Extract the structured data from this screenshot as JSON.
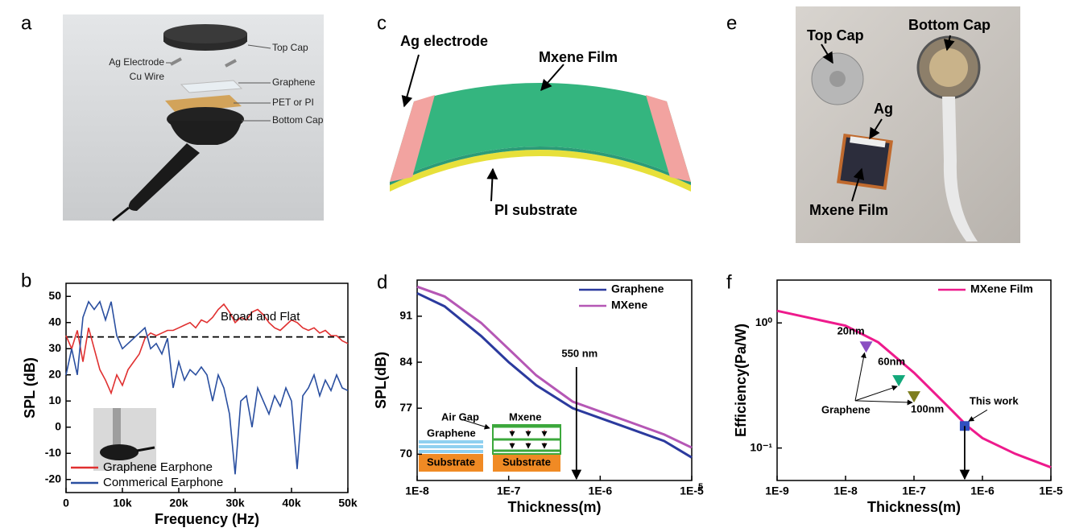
{
  "panel_labels": [
    "a",
    "b",
    "c",
    "d",
    "e",
    "f"
  ],
  "diagram_a": {
    "labels": [
      "Top Cap",
      "Ag Electrode",
      "Cu Wire",
      "Graphene",
      "PET or PI",
      "Bottom Cap"
    ]
  },
  "diagram_c": {
    "labels": [
      "Ag electrode",
      "Mxene Film",
      "PI substrate"
    ]
  },
  "photo_e": {
    "labels": [
      "Top Cap",
      "Bottom Cap",
      "Ag",
      "Mxene Film"
    ]
  },
  "chart_data": [
    {
      "type": "line",
      "y_label": "SPL (dB)",
      "x_label": "Frequency (Hz)",
      "x": [
        0,
        1000,
        2000,
        3000,
        4000,
        5000,
        6000,
        7000,
        8000,
        9000,
        10000,
        11000,
        12000,
        13000,
        14000,
        15000,
        16000,
        17000,
        18000,
        19000,
        20000,
        21000,
        22000,
        23000,
        24000,
        25000,
        26000,
        27000,
        28000,
        29000,
        30000,
        31000,
        32000,
        33000,
        34000,
        35000,
        36000,
        37000,
        38000,
        39000,
        40000,
        41000,
        42000,
        43000,
        44000,
        45000,
        46000,
        47000,
        48000,
        49000,
        50000
      ],
      "series": [
        {
          "name": "Graphene Earphone",
          "color": "#e03030",
          "values": [
            35,
            30,
            37,
            25,
            38,
            30,
            22,
            18,
            13,
            20,
            16,
            22,
            25,
            28,
            34,
            36,
            35,
            36,
            37,
            37,
            38,
            39,
            40,
            38,
            41,
            40,
            42,
            45,
            47,
            44,
            40,
            42,
            41,
            44,
            45,
            43,
            40,
            38,
            37,
            39,
            41,
            40,
            38,
            37,
            38,
            36,
            37,
            35,
            35,
            33,
            32
          ]
        },
        {
          "name": "Commerical Earphone",
          "color": "#2a4fa0",
          "values": [
            20,
            30,
            20,
            42,
            48,
            45,
            48,
            41,
            48,
            35,
            30,
            32,
            34,
            36,
            38,
            30,
            32,
            28,
            34,
            15,
            25,
            18,
            22,
            20,
            23,
            20,
            10,
            20,
            15,
            5,
            -18,
            10,
            12,
            0,
            15,
            10,
            5,
            12,
            8,
            15,
            10,
            -16,
            12,
            15,
            20,
            12,
            18,
            14,
            20,
            15,
            14
          ]
        }
      ],
      "reference_line": 34.5,
      "annotation": "Broad and Flat",
      "xlim": [
        0,
        50000
      ],
      "ylim": [
        -25,
        55
      ],
      "xticks": [
        0,
        {
          "value": 10000,
          "label": "10k"
        },
        {
          "value": 20000,
          "label": "20k"
        },
        {
          "value": 30000,
          "label": "30k"
        },
        {
          "value": 40000,
          "label": "40k"
        },
        {
          "value": 50000,
          "label": "50k"
        }
      ],
      "yticks": [
        -20,
        -10,
        0,
        10,
        20,
        30,
        40,
        50
      ],
      "legend": "lower left"
    },
    {
      "type": "line",
      "y_label": "SPL(dB)",
      "x_label": "Thickness(m)",
      "x_log": true,
      "x": [
        1e-08,
        2e-08,
        5e-08,
        1e-07,
        2e-07,
        5e-07,
        1e-06,
        2e-06,
        5e-06,
        1e-05
      ],
      "series": [
        {
          "name": "Graphene",
          "color": "#2b3a9e",
          "values": [
            94.5,
            92.5,
            88,
            84,
            80.5,
            77,
            75.5,
            74,
            72,
            69.5
          ]
        },
        {
          "name": "MXene",
          "color": "#b557b5",
          "values": [
            95.5,
            94,
            90,
            86,
            82,
            78,
            76.5,
            75,
            73,
            71
          ]
        }
      ],
      "arrow_x": 5.5e-07,
      "annotation": "550 nm",
      "x_tick_note": "5",
      "inset_labels": [
        "Air Gap",
        "Graphene",
        "Mxene",
        "Substrate",
        "Substrate"
      ],
      "xlim": [
        1e-08,
        1e-05
      ],
      "ylim": [
        66,
        96.5
      ],
      "xticks": [
        {
          "value": 1e-08,
          "label": "1E-8"
        },
        {
          "value": 1e-07,
          "label": "1E-7"
        },
        {
          "value": 1e-06,
          "label": "1E-6"
        },
        {
          "value": 1e-05,
          "label": "1E-5"
        }
      ],
      "yticks": [
        70,
        77,
        84,
        91
      ],
      "legend": "upper right"
    },
    {
      "type": "line",
      "y_label": "Efficiency(Pa/W)",
      "x_label": "Thickness(m)",
      "x_log": true,
      "y_log": true,
      "x": [
        1e-09,
        1e-08,
        3e-08,
        1e-07,
        3e-07,
        6e-07,
        1e-06,
        3e-06,
        1e-05
      ],
      "series": [
        {
          "name": "MXene Film",
          "color": "#ee1a8c",
          "values": [
            1.25,
            0.95,
            0.7,
            0.4,
            0.22,
            0.15,
            0.12,
            0.09,
            0.07
          ]
        }
      ],
      "points": [
        {
          "label": "20nm",
          "x": 2e-08,
          "y": 0.65,
          "color": "#8a4ec2",
          "marker": "triangle"
        },
        {
          "label": "60nm",
          "x": 6e-08,
          "y": 0.35,
          "color": "#12a87a",
          "marker": "triangle"
        },
        {
          "label": "100nm",
          "x": 1e-07,
          "y": 0.26,
          "color": "#7d7d1e",
          "marker": "triangle"
        },
        {
          "label": "This work",
          "x": 5.5e-07,
          "y": 0.15,
          "color": "#3050c0",
          "marker": "square"
        }
      ],
      "annotation": "Graphene",
      "xlim": [
        1e-09,
        1e-05
      ],
      "ylim": [
        0.055,
        2.2
      ],
      "xticks": [
        {
          "value": 1e-09,
          "label": "1E-9"
        },
        {
          "value": 1e-08,
          "label": "1E-8"
        },
        {
          "value": 1e-07,
          "label": "1E-7"
        },
        {
          "value": 1e-06,
          "label": "1E-6"
        },
        {
          "value": 1e-05,
          "label": "1E-5"
        }
      ],
      "yticks": [
        {
          "value": 0.1,
          "label": "10⁻¹"
        },
        {
          "value": 1,
          "label": "10⁰"
        }
      ],
      "legend": "upper right"
    }
  ]
}
